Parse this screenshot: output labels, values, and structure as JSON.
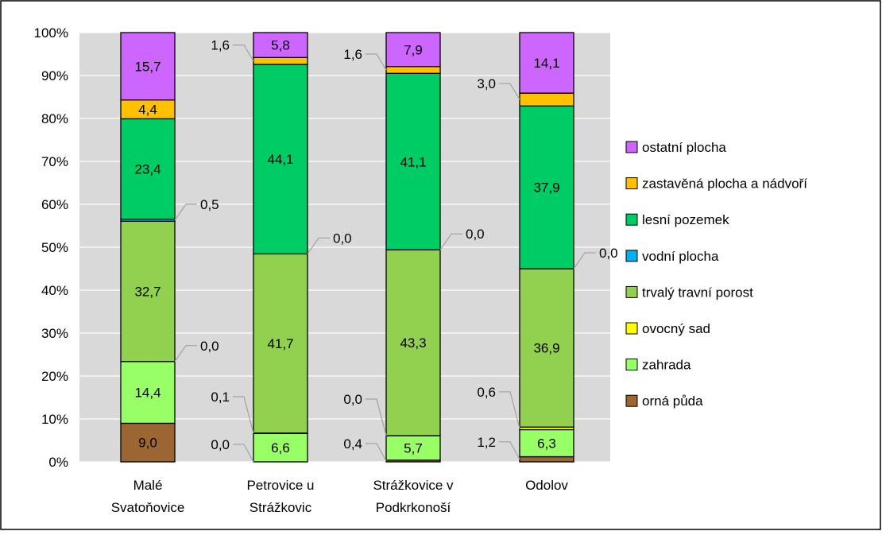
{
  "chart_data": {
    "type": "bar",
    "stacked": true,
    "percent": true,
    "categories": [
      [
        "Malé",
        "Svatoňovice"
      ],
      [
        "Petrovice u",
        "Strážkovic"
      ],
      [
        "Strážkovice v",
        "Podkrkonoší"
      ],
      [
        "Odolov"
      ]
    ],
    "ylim": [
      0,
      100
    ],
    "yticks": [
      "0%",
      "10%",
      "20%",
      "30%",
      "40%",
      "50%",
      "60%",
      "70%",
      "80%",
      "90%",
      "100%"
    ],
    "grid": true,
    "legend_position": "right",
    "series": [
      {
        "name": "orná půda",
        "color": "#9c6632",
        "values": [
          9.0,
          0.0,
          0.4,
          1.2
        ],
        "labels": [
          "9,0",
          "0,0",
          "0,4",
          "1,2"
        ]
      },
      {
        "name": "zahrada",
        "color": "#99ff66",
        "values": [
          14.4,
          6.6,
          5.7,
          6.3
        ],
        "labels": [
          "14,4",
          "6,6",
          "5,7",
          "6,3"
        ]
      },
      {
        "name": "ovocný sad",
        "color": "#ffff00",
        "values": [
          0.0,
          0.1,
          0.0,
          0.6
        ],
        "labels": [
          "0,0",
          "0,1",
          "0,0",
          "0,6"
        ]
      },
      {
        "name": "trvalý travní porost",
        "color": "#92d050",
        "values": [
          32.7,
          41.7,
          43.3,
          36.9
        ],
        "labels": [
          "32,7",
          "41,7",
          "43,3",
          "36,9"
        ]
      },
      {
        "name": "vodní plocha",
        "color": "#00b0f0",
        "values": [
          0.5,
          0.0,
          0.0,
          0.0
        ],
        "labels": [
          "0,5",
          "0,0",
          "0,0",
          "0,0"
        ]
      },
      {
        "name": "lesní pozemek",
        "color": "#00cc66",
        "values": [
          23.4,
          44.1,
          41.1,
          37.9
        ],
        "labels": [
          "23,4",
          "44,1",
          "41,1",
          "37,9"
        ]
      },
      {
        "name": "zastavěná plocha a nádvoří",
        "color": "#ffc000",
        "values": [
          4.4,
          1.6,
          1.6,
          3.0
        ],
        "labels": [
          "4,4",
          "1,6",
          "1,6",
          "3,0"
        ]
      },
      {
        "name": "ostatní plocha",
        "color": "#cc66ff",
        "values": [
          15.7,
          5.8,
          7.9,
          14.1
        ],
        "labels": [
          "15,7",
          "5,8",
          "7,9",
          "14,1"
        ]
      }
    ]
  }
}
